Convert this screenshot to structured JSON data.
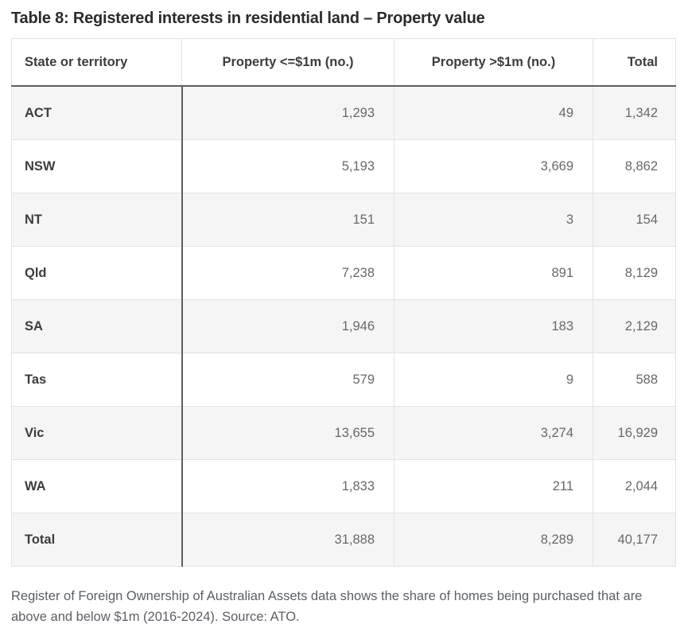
{
  "title": "Table 8: Registered interests in residential land – Property value",
  "table": {
    "columns": [
      "State or territory",
      "Property <=$1m (no.)",
      "Property >$1m (no.)",
      "Total"
    ],
    "rows": [
      [
        "ACT",
        "1,293",
        "49",
        "1,342"
      ],
      [
        "NSW",
        "5,193",
        "3,669",
        "8,862"
      ],
      [
        "NT",
        "151",
        "3",
        "154"
      ],
      [
        "Qld",
        "7,238",
        "891",
        "8,129"
      ],
      [
        "SA",
        "1,946",
        "183",
        "2,129"
      ],
      [
        "Tas",
        "579",
        "9",
        "588"
      ],
      [
        "Vic",
        "13,655",
        "3,274",
        "16,929"
      ],
      [
        "WA",
        "1,833",
        "211",
        "2,044"
      ],
      [
        "Total",
        "31,888",
        "8,289",
        "40,177"
      ]
    ]
  },
  "caption": "Register of Foreign Ownership of Australian Assets data shows the share of homes being purchased that are above and below $1m (2016-2024). Source: ATO.",
  "colors": {
    "row_alt_background": "#f5f5f5",
    "dark_border": "#5f5f5f",
    "light_border": "#e3e3e3",
    "title_text": "#2b2b2b",
    "number_text": "#686868",
    "caption_text": "#5c6066"
  },
  "chart_data": {
    "type": "table",
    "title": "Table 8: Registered interests in residential land – Property value",
    "columns": [
      "State or territory",
      "Property <=$1m (no.)",
      "Property >$1m (no.)",
      "Total"
    ],
    "rows": [
      {
        "state": "ACT",
        "property_lte_1m": 1293,
        "property_gt_1m": 49,
        "total": 1342
      },
      {
        "state": "NSW",
        "property_lte_1m": 5193,
        "property_gt_1m": 3669,
        "total": 8862
      },
      {
        "state": "NT",
        "property_lte_1m": 151,
        "property_gt_1m": 3,
        "total": 154
      },
      {
        "state": "Qld",
        "property_lte_1m": 7238,
        "property_gt_1m": 891,
        "total": 8129
      },
      {
        "state": "SA",
        "property_lte_1m": 1946,
        "property_gt_1m": 183,
        "total": 2129
      },
      {
        "state": "Tas",
        "property_lte_1m": 579,
        "property_gt_1m": 9,
        "total": 588
      },
      {
        "state": "Vic",
        "property_lte_1m": 13655,
        "property_gt_1m": 3274,
        "total": 16929
      },
      {
        "state": "WA",
        "property_lte_1m": 1833,
        "property_gt_1m": 211,
        "total": 2044
      },
      {
        "state": "Total",
        "property_lte_1m": 31888,
        "property_gt_1m": 8289,
        "total": 40177
      }
    ],
    "source_note": "Register of Foreign Ownership of Australian Assets data shows the share of homes being purchased that are above and below $1m (2016-2024). Source: ATO."
  }
}
